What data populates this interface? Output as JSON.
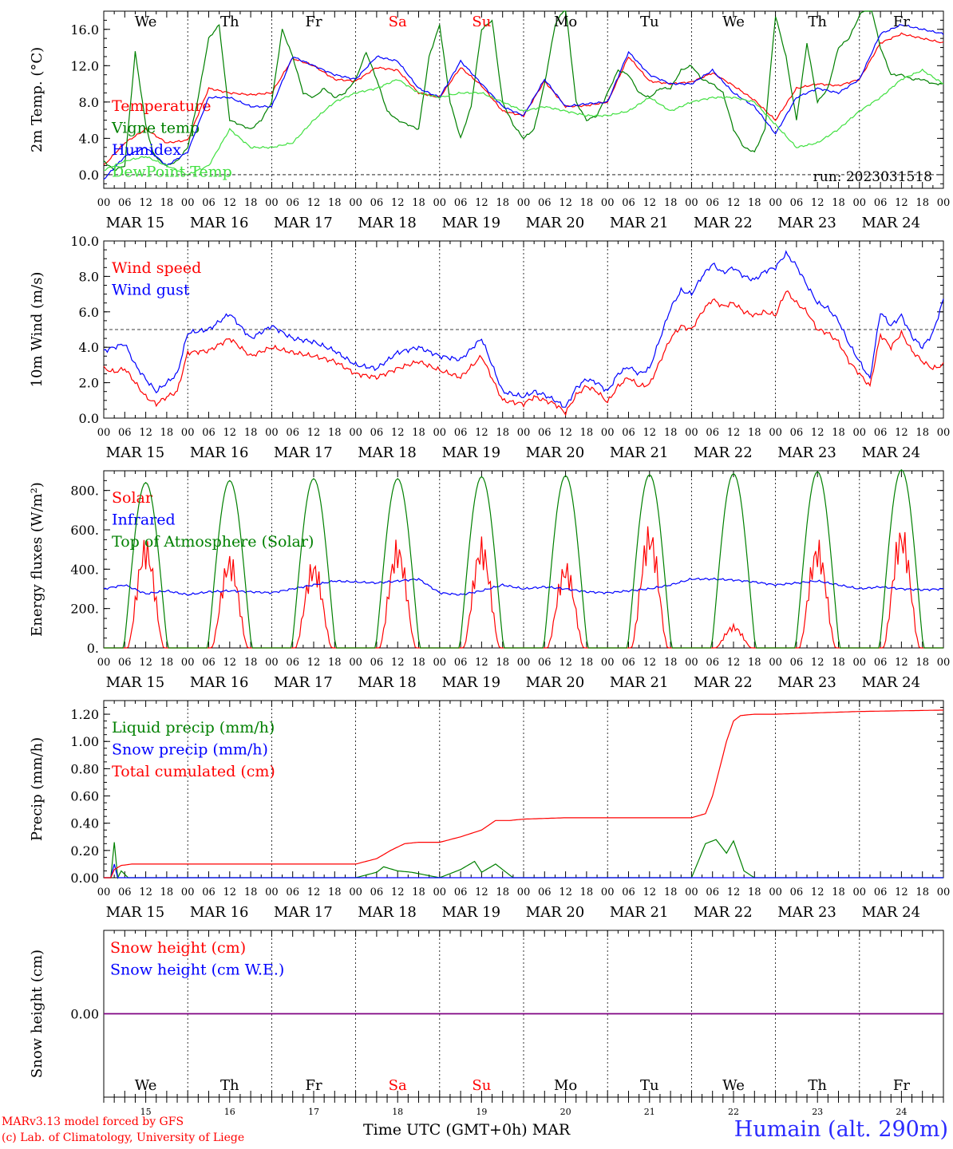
{
  "chart_data": [
    {
      "type": "line",
      "ylabel": "2m Temp. (°C)",
      "ylim": [
        -1.5,
        18.0
      ],
      "yticks": [
        "0.0",
        "4.0",
        "8.0",
        "12.0",
        "16.0"
      ],
      "run_label": "run: 2023031518",
      "x_unit": "hours since 2023-03-15 00 UTC",
      "series": [
        {
          "name": "Temperature",
          "color": "#ff0000",
          "x": [
            0,
            6,
            12,
            18,
            24,
            30,
            36,
            42,
            48,
            54,
            60,
            66,
            72,
            78,
            84,
            90,
            96,
            102,
            108,
            114,
            120,
            126,
            132,
            138,
            144,
            150,
            156,
            162,
            168,
            174,
            180,
            186,
            192,
            198,
            204,
            210,
            216,
            222,
            228,
            234,
            240
          ],
          "y": [
            1.0,
            3.5,
            5.0,
            3.5,
            3.8,
            9.5,
            9.0,
            8.8,
            9.0,
            12.8,
            12.0,
            10.5,
            10.3,
            11.8,
            11.5,
            9.0,
            8.5,
            11.8,
            9.8,
            7.0,
            6.5,
            10.3,
            7.5,
            7.6,
            8.0,
            13.0,
            10.3,
            10.0,
            10.2,
            11.2,
            9.8,
            8.2,
            6.0,
            9.5,
            10.0,
            9.8,
            10.5,
            14.5,
            15.5,
            15.0,
            14.5
          ]
        },
        {
          "name": "Vigne temp",
          "color": "#008000",
          "x": [
            0,
            3,
            6,
            9,
            12,
            14,
            16,
            18,
            21,
            24,
            27,
            30,
            33,
            36,
            42,
            45,
            48,
            51,
            54,
            57,
            60,
            63,
            66,
            69,
            72,
            75,
            78,
            81,
            84,
            87,
            90,
            93,
            96,
            99,
            102,
            105,
            108,
            111,
            114,
            117,
            120,
            123,
            126,
            129,
            132,
            135,
            138,
            141,
            144,
            147,
            150,
            153,
            156,
            159,
            162,
            165,
            168,
            171,
            174,
            177,
            180,
            183,
            186,
            189,
            192,
            195,
            198,
            201,
            204,
            207,
            210,
            213,
            216,
            219,
            222,
            225,
            228,
            231,
            234,
            237,
            240
          ],
          "y": [
            1.5,
            0.5,
            1.0,
            13.5,
            5.5,
            2.5,
            1.5,
            1.0,
            1.5,
            3.0,
            8.5,
            15.0,
            16.5,
            6.0,
            5.0,
            6.0,
            8.0,
            16.0,
            13.0,
            9.0,
            8.5,
            9.5,
            8.5,
            9.0,
            10.5,
            13.5,
            10.5,
            7.0,
            6.0,
            5.5,
            5.0,
            13.0,
            16.5,
            8.0,
            4.0,
            7.5,
            16.0,
            17.0,
            8.0,
            5.5,
            4.0,
            5.0,
            10.0,
            16.5,
            18.5,
            8.0,
            6.0,
            6.5,
            9.0,
            11.5,
            11.0,
            9.0,
            8.5,
            9.5,
            9.5,
            11.5,
            12.0,
            10.5,
            10.0,
            9.0,
            5.0,
            3.0,
            2.5,
            5.0,
            17.5,
            13.0,
            6.0,
            14.5,
            8.0,
            9.5,
            14.0,
            15.0,
            17.5,
            19.0,
            14.0,
            11.0,
            11.0,
            10.5,
            10.5,
            10.0,
            10.0
          ]
        },
        {
          "name": "Humidex",
          "color": "#0000ff",
          "x": [
            0,
            6,
            12,
            18,
            24,
            30,
            36,
            42,
            48,
            54,
            60,
            66,
            72,
            78,
            84,
            90,
            96,
            102,
            108,
            114,
            120,
            126,
            132,
            138,
            144,
            150,
            156,
            162,
            168,
            174,
            180,
            186,
            192,
            198,
            204,
            210,
            216,
            222,
            228,
            234,
            240
          ],
          "y": [
            -0.5,
            2.0,
            3.0,
            1.0,
            2.5,
            8.5,
            8.5,
            7.5,
            7.5,
            13.0,
            12.0,
            11.0,
            10.5,
            13.0,
            12.5,
            9.5,
            8.5,
            12.5,
            10.0,
            7.5,
            6.5,
            10.5,
            7.5,
            7.8,
            8.0,
            13.5,
            11.0,
            10.0,
            10.0,
            11.5,
            9.0,
            7.5,
            4.5,
            8.5,
            9.5,
            9.0,
            10.5,
            15.5,
            16.5,
            16.0,
            15.5
          ]
        },
        {
          "name": "DewPoint Temp",
          "color": "#40e040",
          "x": [
            0,
            6,
            12,
            18,
            24,
            30,
            36,
            42,
            48,
            54,
            60,
            66,
            72,
            78,
            84,
            90,
            96,
            102,
            108,
            114,
            120,
            126,
            132,
            138,
            144,
            150,
            156,
            162,
            168,
            174,
            180,
            186,
            192,
            198,
            204,
            210,
            216,
            222,
            228,
            234,
            240
          ],
          "y": [
            0.5,
            1.5,
            2.0,
            1.0,
            0.0,
            1.0,
            5.0,
            3.0,
            3.0,
            3.5,
            6.0,
            8.0,
            9.0,
            9.5,
            10.5,
            9.0,
            8.5,
            9.0,
            9.0,
            8.0,
            7.0,
            7.5,
            7.0,
            6.5,
            6.5,
            7.0,
            8.5,
            7.0,
            8.0,
            8.5,
            8.5,
            8.0,
            5.5,
            3.0,
            3.5,
            5.0,
            7.0,
            8.5,
            10.5,
            11.5,
            10.0
          ]
        }
      ],
      "zero_line": 0.0
    },
    {
      "type": "line",
      "ylabel": "10m Wind (m/s)",
      "ylim": [
        0.0,
        10.0
      ],
      "yticks": [
        "0.0",
        "2.0",
        "4.0",
        "6.0",
        "8.0",
        "10.0"
      ],
      "reference_line": 5.0,
      "x_unit": "hours since 2023-03-15 00 UTC",
      "series": [
        {
          "name": "Wind speed",
          "color": "#ff0000",
          "x": [
            0,
            3,
            6,
            9,
            12,
            15,
            18,
            21,
            24,
            30,
            36,
            42,
            48,
            54,
            60,
            66,
            72,
            78,
            84,
            90,
            96,
            102,
            108,
            114,
            120,
            123,
            126,
            129,
            132,
            135,
            138,
            141,
            144,
            147,
            150,
            153,
            156,
            159,
            162,
            165,
            168,
            171,
            174,
            177,
            180,
            183,
            186,
            189,
            192,
            195,
            198,
            201,
            204,
            207,
            210,
            213,
            216,
            219,
            222,
            225,
            228,
            231,
            234,
            237,
            240
          ],
          "y": [
            2.8,
            2.6,
            2.8,
            2.0,
            1.2,
            0.8,
            1.2,
            1.5,
            3.7,
            3.8,
            4.5,
            3.5,
            4.0,
            3.7,
            3.5,
            3.2,
            2.5,
            2.3,
            2.8,
            3.2,
            2.7,
            2.3,
            3.5,
            1.0,
            0.8,
            1.2,
            1.0,
            0.8,
            0.3,
            1.3,
            1.8,
            1.5,
            0.9,
            1.8,
            2.3,
            1.8,
            1.9,
            3.2,
            4.5,
            5.2,
            5.0,
            6.0,
            6.7,
            6.3,
            6.5,
            6.0,
            5.8,
            6.0,
            5.8,
            7.2,
            6.5,
            6.0,
            5.0,
            4.8,
            4.3,
            3.2,
            2.5,
            1.8,
            4.7,
            4.0,
            4.8,
            3.8,
            3.2,
            2.8,
            3.0
          ]
        },
        {
          "name": "Wind gust",
          "color": "#0000ff",
          "x": [
            0,
            3,
            6,
            9,
            12,
            15,
            18,
            21,
            24,
            30,
            36,
            42,
            48,
            54,
            60,
            66,
            72,
            78,
            84,
            90,
            96,
            102,
            108,
            114,
            120,
            123,
            126,
            129,
            132,
            135,
            138,
            141,
            144,
            147,
            150,
            153,
            156,
            159,
            162,
            165,
            168,
            171,
            174,
            177,
            180,
            183,
            186,
            189,
            192,
            195,
            198,
            201,
            204,
            207,
            210,
            213,
            216,
            219,
            222,
            225,
            228,
            231,
            234,
            237,
            240
          ],
          "y": [
            3.8,
            4.0,
            4.2,
            3.0,
            2.2,
            1.5,
            2.0,
            2.5,
            4.8,
            5.0,
            5.9,
            4.5,
            5.2,
            4.5,
            4.3,
            3.8,
            3.0,
            2.8,
            3.7,
            4.0,
            3.5,
            3.3,
            4.5,
            1.5,
            1.2,
            1.5,
            1.3,
            1.0,
            0.6,
            1.7,
            2.2,
            2.0,
            1.5,
            2.5,
            2.9,
            2.5,
            2.8,
            4.5,
            6.2,
            7.2,
            7.0,
            8.0,
            8.7,
            8.2,
            8.5,
            8.0,
            7.8,
            8.3,
            8.5,
            9.3,
            8.6,
            7.5,
            6.5,
            6.2,
            5.5,
            4.2,
            3.2,
            2.2,
            6.0,
            5.2,
            5.8,
            4.6,
            4.0,
            4.8,
            6.7
          ]
        }
      ]
    },
    {
      "type": "line",
      "ylabel": "Energy fluxes (W/m²)",
      "ylim": [
        0,
        900
      ],
      "yticks": [
        "0.",
        "200.",
        "400.",
        "600.",
        "800."
      ],
      "x_unit": "hours since 2023-03-15 00 UTC",
      "series": [
        {
          "name": "Solar",
          "color": "#ff0000",
          "daily_peak": [
            570,
            490,
            460,
            560,
            570,
            450,
            640,
            120,
            560,
            640
          ]
        },
        {
          "name": "Infrared",
          "color": "#0000ff",
          "x": [
            0,
            6,
            12,
            18,
            24,
            30,
            36,
            42,
            48,
            54,
            60,
            66,
            72,
            78,
            84,
            90,
            96,
            102,
            108,
            114,
            120,
            126,
            132,
            138,
            144,
            150,
            156,
            162,
            168,
            174,
            180,
            186,
            192,
            198,
            204,
            210,
            216,
            222,
            228,
            234,
            240
          ],
          "y": [
            300,
            320,
            275,
            290,
            270,
            285,
            290,
            285,
            280,
            300,
            320,
            340,
            335,
            330,
            340,
            350,
            280,
            270,
            290,
            320,
            300,
            310,
            300,
            285,
            280,
            290,
            300,
            320,
            350,
            350,
            345,
            335,
            320,
            330,
            340,
            320,
            300,
            310,
            300,
            295,
            300
          ]
        },
        {
          "name": "Top of Atmosphere (Solar)",
          "color": "#008000",
          "daily_peak": [
            840,
            850,
            860,
            860,
            870,
            875,
            880,
            885,
            895,
            905
          ]
        }
      ]
    },
    {
      "type": "line",
      "ylabel": "Precip (mm/h)",
      "ylim": [
        0.0,
        1.3
      ],
      "yticks": [
        "0.00",
        "0.20",
        "0.40",
        "0.60",
        "0.80",
        "1.00",
        "1.20"
      ],
      "x_unit": "hours since 2023-03-15 00 UTC",
      "series": [
        {
          "name": "Liquid precip (mm/h)",
          "color": "#008000",
          "x": [
            0,
            2,
            3,
            4,
            5,
            7,
            72,
            78,
            80,
            84,
            88,
            96,
            102,
            106,
            108,
            112,
            117,
            120,
            168,
            172,
            175,
            178,
            180,
            183,
            186,
            216,
            240
          ],
          "y": [
            0,
            0,
            0.26,
            0.0,
            0.05,
            0.0,
            0.0,
            0.04,
            0.08,
            0.05,
            0.04,
            0.0,
            0.06,
            0.12,
            0.04,
            0.1,
            0.0,
            0.0,
            0.0,
            0.25,
            0.28,
            0.18,
            0.27,
            0.05,
            0.0,
            0.0,
            0.0
          ]
        },
        {
          "name": "Snow precip (mm/h)",
          "color": "#0000ff",
          "x": [
            0,
            2,
            3,
            4,
            6,
            240
          ],
          "y": [
            0,
            0,
            0.1,
            0.0,
            0.0,
            0.0
          ]
        },
        {
          "name": "Total cumulated (cm)",
          "color": "#ff0000",
          "x": [
            0,
            2,
            3,
            5,
            8,
            72,
            78,
            82,
            86,
            90,
            96,
            102,
            108,
            112,
            116,
            120,
            132,
            156,
            168,
            172,
            174,
            176,
            178,
            180,
            182,
            186,
            192,
            216,
            240
          ],
          "y": [
            0,
            0,
            0.06,
            0.09,
            0.1,
            0.1,
            0.14,
            0.2,
            0.25,
            0.26,
            0.26,
            0.3,
            0.35,
            0.42,
            0.42,
            0.43,
            0.44,
            0.44,
            0.44,
            0.47,
            0.6,
            0.8,
            1.0,
            1.15,
            1.19,
            1.2,
            1.2,
            1.22,
            1.23
          ]
        }
      ]
    },
    {
      "type": "line",
      "ylabel": "Snow height (cm)",
      "ylim": [
        -1,
        1
      ],
      "yticks": [
        "0.00"
      ],
      "x_unit": "hours since 2023-03-15 00 UTC",
      "series": [
        {
          "name": "Snow height (cm)",
          "color": "#ff0000",
          "x": [
            0,
            240
          ],
          "y": [
            0,
            0
          ]
        },
        {
          "name": "Snow height (cm W.E.)",
          "color": "#0000ff",
          "x": [
            0,
            240
          ],
          "y": [
            0,
            0
          ]
        }
      ]
    }
  ],
  "x_axis": {
    "hour_labels": [
      "00",
      "06",
      "12",
      "18"
    ],
    "final_hour_label": "00",
    "date_labels": [
      "MAR 15",
      "MAR 16",
      "MAR 17",
      "MAR 18",
      "MAR 19",
      "MAR 20",
      "MAR 21",
      "MAR 22",
      "MAR 23",
      "MAR 24"
    ],
    "weekdays": [
      "We",
      "Th",
      "Fr",
      "Sa",
      "Su",
      "Mo",
      "Tu",
      "We",
      "Th",
      "Fr"
    ],
    "weekday_colors": [
      "#000000",
      "#000000",
      "#000000",
      "#ff0000",
      "#ff0000",
      "#000000",
      "#000000",
      "#000000",
      "#000000",
      "#000000"
    ],
    "day_numbers": [
      "15",
      "16",
      "17",
      "18",
      "19",
      "20",
      "21",
      "22",
      "23",
      "24"
    ],
    "title": "Time UTC (GMT+0h)",
    "month": "MAR"
  },
  "footer": {
    "credit_line1": "MARv3.13 model forced by GFS",
    "credit_line2": "(c) Lab. of Climatology, University of Liege",
    "station": "Humain (alt. 290m)"
  }
}
